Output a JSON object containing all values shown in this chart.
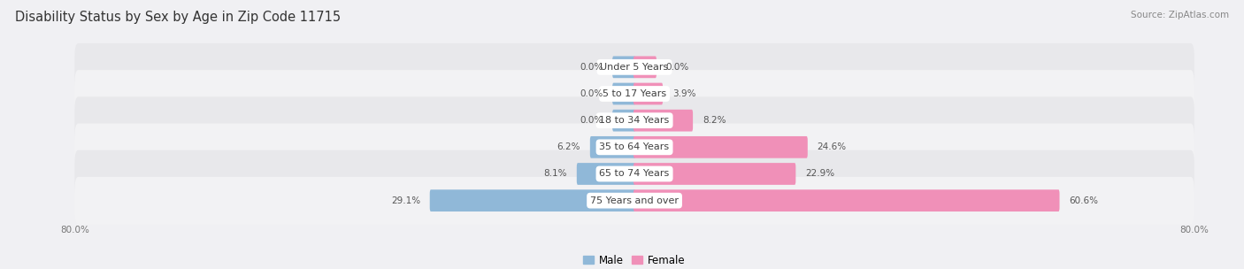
{
  "title": "Disability Status by Sex by Age in Zip Code 11715",
  "source": "Source: ZipAtlas.com",
  "categories": [
    "Under 5 Years",
    "5 to 17 Years",
    "18 to 34 Years",
    "35 to 64 Years",
    "65 to 74 Years",
    "75 Years and over"
  ],
  "male_values": [
    0.0,
    0.0,
    0.0,
    6.2,
    8.1,
    29.1
  ],
  "female_values": [
    0.0,
    3.9,
    8.2,
    24.6,
    22.9,
    60.6
  ],
  "male_color": "#90b8d8",
  "female_color": "#f090b8",
  "axis_limit": 80.0,
  "row_colors": [
    "#e8e8eb",
    "#f2f2f4"
  ],
  "title_fontsize": 10.5,
  "source_fontsize": 7.5,
  "label_fontsize": 8,
  "value_fontsize": 7.5,
  "legend_fontsize": 8.5,
  "axis_label_fontsize": 7.5,
  "min_bar_display": 3.0
}
